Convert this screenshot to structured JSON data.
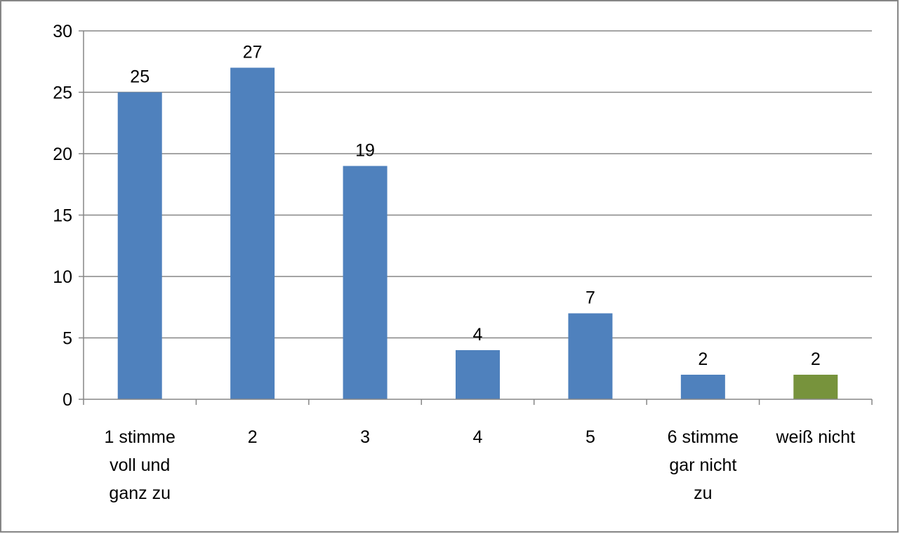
{
  "chart_data": {
    "type": "bar",
    "categories": [
      [
        "1 stimme",
        "voll und",
        "ganz zu"
      ],
      [
        "2"
      ],
      [
        "3"
      ],
      [
        "4"
      ],
      [
        "5"
      ],
      [
        "6 stimme",
        "gar nicht",
        "zu"
      ],
      [
        "weiß nicht"
      ]
    ],
    "values": [
      25,
      27,
      19,
      4,
      7,
      2,
      2
    ],
    "data_labels": [
      "25",
      "27",
      "19",
      "4",
      "7",
      "2",
      "2"
    ],
    "bar_colors": [
      "#4F81BD",
      "#4F81BD",
      "#4F81BD",
      "#4F81BD",
      "#4F81BD",
      "#4F81BD",
      "#77933C"
    ],
    "ylim": [
      0,
      30
    ],
    "yticks": [
      "0",
      "5",
      "10",
      "15",
      "20",
      "25",
      "30"
    ],
    "grid": true,
    "title": "",
    "xlabel": "",
    "ylabel": "",
    "colors": {
      "background": "#ffffff",
      "frame": "#868686",
      "gridline": "#868686",
      "axis": "#868686"
    }
  }
}
